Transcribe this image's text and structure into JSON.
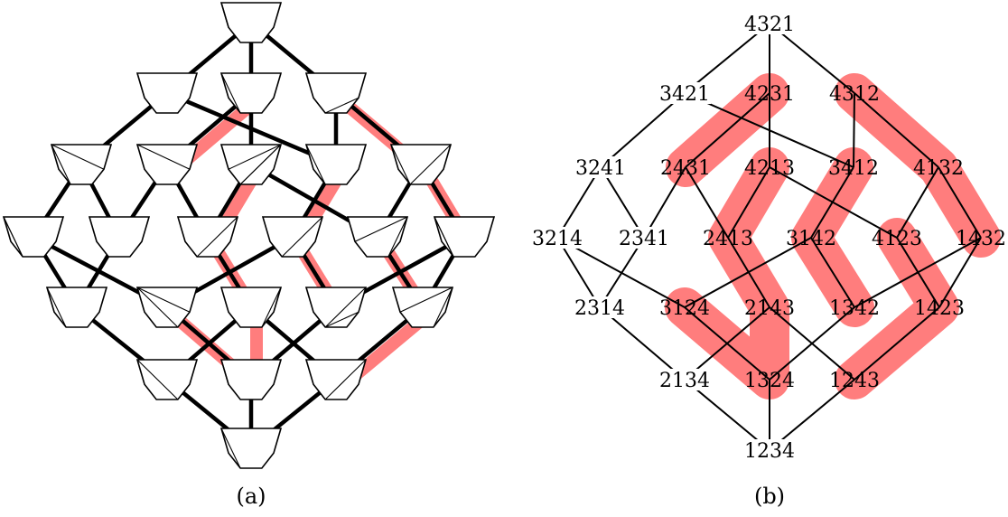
{
  "captions": {
    "a": "(a)",
    "b": "(b)"
  },
  "colors": {
    "highlight": "#ff7d7d",
    "edge": "#000000",
    "background": "#ffffff"
  },
  "panel_a": {
    "description_nodes": [
      "4321",
      "3421",
      "4231",
      "4312",
      "3241",
      "2431",
      "4213",
      "3412",
      "4132",
      "3214",
      "2341",
      "2413",
      "3142",
      "4123",
      "1432",
      "2314",
      "3124",
      "2143",
      "1342",
      "1423",
      "2134",
      "1324",
      "1243",
      "1234"
    ]
  },
  "panel_b": {
    "nodes": [
      {
        "id": "4321",
        "label": "4321"
      },
      {
        "id": "3421",
        "label": "3421"
      },
      {
        "id": "4231",
        "label": "4231"
      },
      {
        "id": "4312",
        "label": "4312"
      },
      {
        "id": "3241",
        "label": "3241"
      },
      {
        "id": "2431",
        "label": "2431"
      },
      {
        "id": "4213",
        "label": "4213"
      },
      {
        "id": "3412",
        "label": "3412"
      },
      {
        "id": "4132",
        "label": "4132"
      },
      {
        "id": "3214",
        "label": "3214"
      },
      {
        "id": "2341",
        "label": "2341"
      },
      {
        "id": "2413",
        "label": "2413"
      },
      {
        "id": "3142",
        "label": "3142"
      },
      {
        "id": "4123",
        "label": "4123"
      },
      {
        "id": "1432",
        "label": "1432"
      },
      {
        "id": "2314",
        "label": "2314"
      },
      {
        "id": "3124",
        "label": "3124"
      },
      {
        "id": "2143",
        "label": "2143"
      },
      {
        "id": "1342",
        "label": "1342"
      },
      {
        "id": "1423",
        "label": "1423"
      },
      {
        "id": "2134",
        "label": "2134"
      },
      {
        "id": "1324",
        "label": "1324"
      },
      {
        "id": "1243",
        "label": "1243"
      },
      {
        "id": "1234",
        "label": "1234"
      }
    ],
    "edges": [
      [
        "4321",
        "3421"
      ],
      [
        "4321",
        "4231"
      ],
      [
        "4321",
        "4312"
      ],
      [
        "3421",
        "3241"
      ],
      [
        "3421",
        "3412"
      ],
      [
        "4231",
        "2431"
      ],
      [
        "4231",
        "4213"
      ],
      [
        "4312",
        "3412"
      ],
      [
        "4312",
        "4132"
      ],
      [
        "3241",
        "3214"
      ],
      [
        "3241",
        "2341"
      ],
      [
        "2431",
        "2341"
      ],
      [
        "2431",
        "2413"
      ],
      [
        "4213",
        "2413"
      ],
      [
        "4213",
        "4123"
      ],
      [
        "3412",
        "3142"
      ],
      [
        "4132",
        "4123"
      ],
      [
        "4132",
        "1432"
      ],
      [
        "3214",
        "2314"
      ],
      [
        "3214",
        "3124"
      ],
      [
        "2341",
        "2314"
      ],
      [
        "2413",
        "2143"
      ],
      [
        "3142",
        "3124"
      ],
      [
        "3142",
        "1342"
      ],
      [
        "4123",
        "1423"
      ],
      [
        "1432",
        "1342"
      ],
      [
        "1432",
        "1423"
      ],
      [
        "2314",
        "2134"
      ],
      [
        "3124",
        "1324"
      ],
      [
        "2143",
        "2134"
      ],
      [
        "2143",
        "1243"
      ],
      [
        "1342",
        "1324"
      ],
      [
        "1423",
        "1243"
      ],
      [
        "2134",
        "1234"
      ],
      [
        "1324",
        "1234"
      ],
      [
        "1243",
        "1234"
      ]
    ],
    "highlighted_paths": [
      [
        "2431",
        "4231"
      ],
      [
        "4312",
        "4132",
        "1432"
      ],
      [
        "4213",
        "2413",
        "2143",
        "1324",
        "3124"
      ],
      [
        "3412",
        "3142",
        "1342"
      ],
      [
        "4123",
        "1423",
        "1243"
      ]
    ]
  }
}
